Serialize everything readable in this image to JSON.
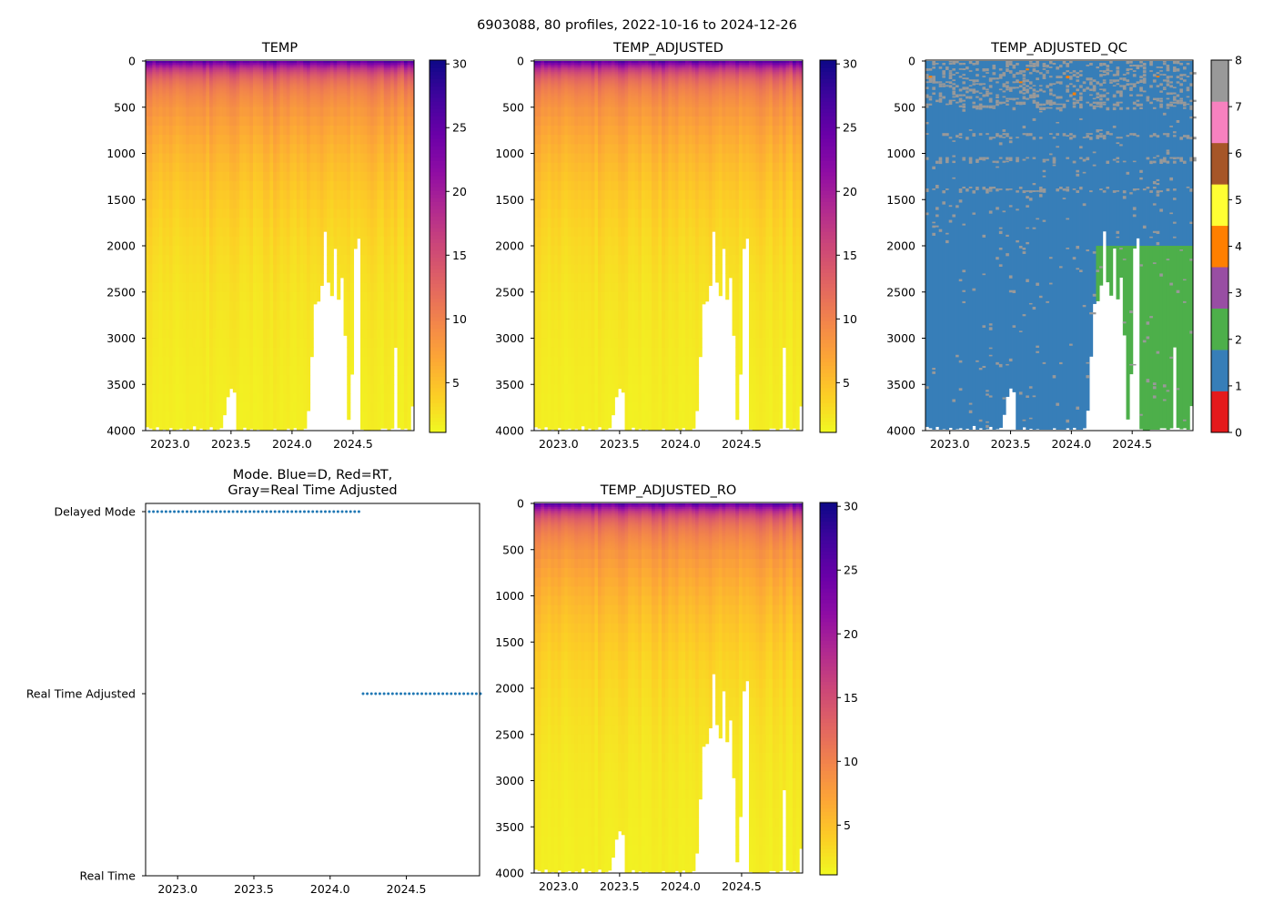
{
  "figure": {
    "suptitle": "6903088, 80 profiles, 2022-10-16 to 2024-12-26"
  },
  "chart_data": [
    {
      "id": "temp",
      "type": "heatmap",
      "title": "TEMP",
      "colormap": "plasma_r",
      "clim": [
        1.1,
        30.3
      ],
      "colorbar_ticks": [
        "5",
        "10",
        "15",
        "20",
        "25",
        "30"
      ],
      "xlim": [
        2022.8,
        2025.0
      ],
      "xticks": [
        "2023.0",
        "2023.5",
        "2024.0",
        "2024.5"
      ],
      "ylim": [
        4000,
        0
      ],
      "yticks": [
        "0",
        "500",
        "1000",
        "1500",
        "2000",
        "2500",
        "3000",
        "3500",
        "4000"
      ]
    },
    {
      "id": "temp_adj",
      "type": "heatmap",
      "title": "TEMP_ADJUSTED",
      "colormap": "plasma_r",
      "clim": [
        1.1,
        30.3
      ],
      "colorbar_ticks": [
        "5",
        "10",
        "15",
        "20",
        "25",
        "30"
      ],
      "xlim": [
        2022.8,
        2025.0
      ],
      "xticks": [
        "2023.0",
        "2023.5",
        "2024.0",
        "2024.5"
      ],
      "ylim": [
        4000,
        0
      ],
      "yticks": [
        "0",
        "500",
        "1000",
        "1500",
        "2000",
        "2500",
        "3000",
        "3500",
        "4000"
      ]
    },
    {
      "id": "qc",
      "type": "heatmap",
      "title": "TEMP_ADJUSTED_QC",
      "colormap": "categorical",
      "qc_colors": [
        "#e41a1c",
        "#377eb8",
        "#4daf4a",
        "#984ea3",
        "#ff7f00",
        "#ffff33",
        "#a65628",
        "#f781bf",
        "#999999"
      ],
      "colorbar_ticks": [
        "0",
        "1",
        "2",
        "3",
        "4",
        "5",
        "6",
        "7",
        "8"
      ],
      "dominant_qc_delayed": 1,
      "dominant_qc_rta_below_2000": 2,
      "xlim": [
        2022.8,
        2025.0
      ],
      "xticks": [
        "2023.0",
        "2023.5",
        "2024.0",
        "2024.5"
      ],
      "ylim": [
        4000,
        0
      ],
      "yticks": [
        "0",
        "500",
        "1000",
        "1500",
        "2000",
        "2500",
        "3000",
        "3500",
        "4000"
      ]
    },
    {
      "id": "mode",
      "type": "scatter",
      "title_line1": "Mode. Blue=D, Red=RT,",
      "title_line2": "Gray=Real Time Adjusted",
      "xlim": [
        2022.79,
        2024.98
      ],
      "xticks": [
        "2023.0",
        "2023.5",
        "2024.0",
        "2024.5"
      ],
      "ylim": [
        0,
        2
      ],
      "yticks": [
        "Real Time",
        "Real Time Adjusted",
        "Delayed Mode"
      ],
      "point_color": "#1f77b4"
    },
    {
      "id": "temp_ro",
      "type": "heatmap",
      "title": "TEMP_ADJUSTED_RO",
      "colormap": "plasma_r",
      "clim": [
        1.1,
        30.3
      ],
      "colorbar_ticks": [
        "5",
        "10",
        "15",
        "20",
        "25",
        "30"
      ],
      "xlim": [
        2022.8,
        2025.0
      ],
      "xticks": [
        "2023.0",
        "2023.5",
        "2024.0",
        "2024.5"
      ],
      "ylim": [
        4000,
        0
      ],
      "yticks": [
        "0",
        "500",
        "1000",
        "1500",
        "2000",
        "2500",
        "3000",
        "3500",
        "4000"
      ]
    }
  ],
  "profiles": {
    "count": 80,
    "date_start": 2022.8,
    "date_end": 2025.0,
    "modes": "DDDDDDDDDDDDDDDDDDDDDDDDDDDDDDDDDDDDDDDDDDDDDDDDDDDAAAAAAAAAAAAAAAAAAAAAAAAAAAAA",
    "max_pressure": [
      3960,
      3975,
      3990,
      3960,
      3990,
      3985,
      3990,
      3970,
      3990,
      3985,
      3975,
      3990,
      3980,
      3990,
      3950,
      3990,
      3975,
      3990,
      3985,
      3960,
      3990,
      3985,
      3970,
      3830,
      3635,
      3545,
      3585,
      3990,
      3990,
      3965,
      3990,
      3980,
      3990,
      3985,
      3990,
      3990,
      3990,
      3990,
      3975,
      3990,
      3990,
      3990,
      3975,
      3990,
      3970,
      3990,
      3990,
      3975,
      3785,
      3200,
      2630,
      2600,
      2430,
      1845,
      2395,
      2540,
      2030,
      2580,
      2345,
      2970,
      3880,
      3390,
      2030,
      1920,
      3985,
      3995,
      4000,
      3990,
      3990,
      3990,
      3975,
      3975,
      3990,
      3975,
      3100,
      3970,
      3985,
      3975,
      3990,
      3735
    ]
  }
}
